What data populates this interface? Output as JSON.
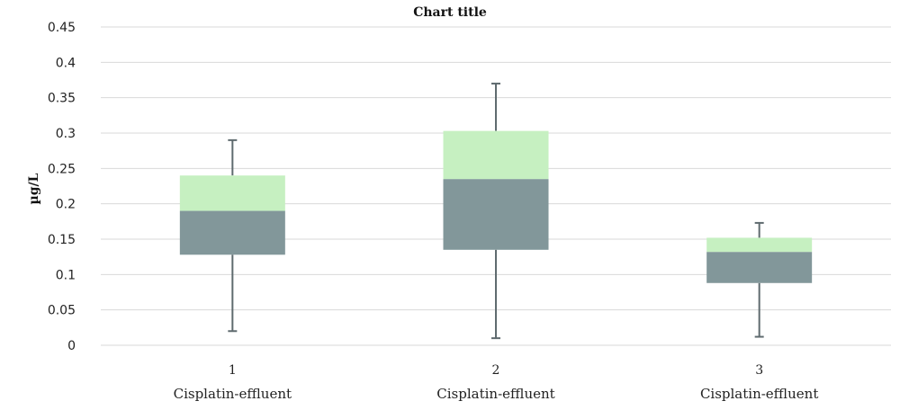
{
  "chart_data": {
    "type": "box",
    "title": "Chart title",
    "ylabel": "µg/L",
    "ylim": [
      0,
      0.45
    ],
    "yticks": [
      "0",
      "0.05",
      "0.1",
      "0.15",
      "0.2",
      "0.25",
      "0.3",
      "0.35",
      "0.4",
      "0.45"
    ],
    "grid": true,
    "colors": {
      "lower_box": "#82979a",
      "upper_box": "#c6f0c1",
      "whisker": "#5f6b6f",
      "grid": "#d9d9d9"
    },
    "boxes": [
      {
        "number": "1",
        "name": "Cisplatin-effluent",
        "min": 0.02,
        "q1": 0.128,
        "median": 0.19,
        "q3": 0.24,
        "max": 0.29
      },
      {
        "number": "2",
        "name": "Cisplatin-effluent",
        "min": 0.01,
        "q1": 0.135,
        "median": 0.235,
        "q3": 0.303,
        "max": 0.37
      },
      {
        "number": "3",
        "name": "Cisplatin-effluent",
        "min": 0.012,
        "q1": 0.088,
        "median": 0.132,
        "q3": 0.152,
        "max": 0.173
      }
    ]
  }
}
